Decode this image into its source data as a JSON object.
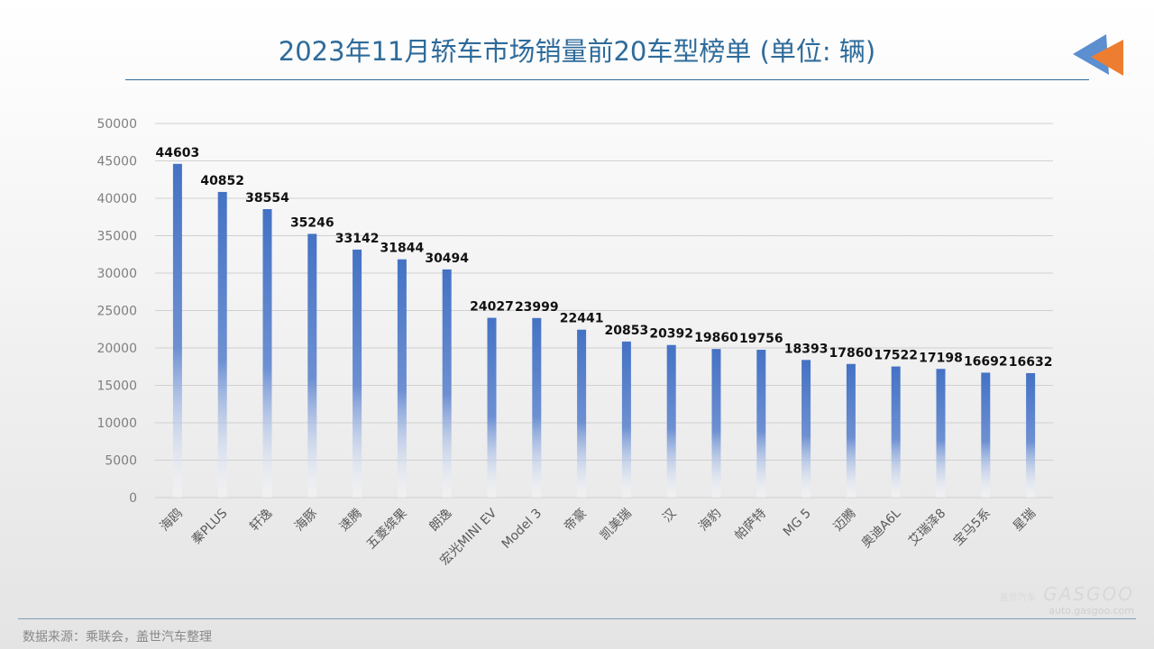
{
  "title": "2023年11月轿车市场销量前20车型榜单 (单位: 辆)",
  "footer": "数据来源：乘联会，盖世汽车整理",
  "watermark": {
    "cn": "盖世汽车",
    "brand": "GASGOO",
    "url": "auto.gasgoo.com"
  },
  "colors": {
    "bar_top": "#4472c4",
    "bar_bottom": "#ffffff",
    "title": "#2e6b9a",
    "logo_blue": "#5b8fd0",
    "logo_orange": "#ed7d31"
  },
  "chart_data": {
    "type": "bar",
    "title": "2023年11月轿车市场销量前20车型榜单 (单位: 辆)",
    "categories": [
      "海鸥",
      "秦PLUS",
      "轩逸",
      "海豚",
      "速腾",
      "五菱缤果",
      "朗逸",
      "宏光MINI EV",
      "Model 3",
      "帝豪",
      "凯美瑞",
      "汉",
      "海豹",
      "帕萨特",
      "MG 5",
      "迈腾",
      "奥迪A6L",
      "艾瑞泽8",
      "宝马5系",
      "星瑞"
    ],
    "values": [
      44603,
      40852,
      38554,
      35246,
      33142,
      31844,
      30494,
      24027,
      23999,
      22441,
      20853,
      20392,
      19860,
      19756,
      18393,
      17860,
      17522,
      17198,
      16692,
      16632
    ],
    "ylim": [
      0,
      50000
    ],
    "yticks": [
      0,
      5000,
      10000,
      15000,
      20000,
      25000,
      30000,
      35000,
      40000,
      45000,
      50000
    ],
    "grid": true,
    "data_labels": true,
    "xlabel": "",
    "ylabel": ""
  }
}
